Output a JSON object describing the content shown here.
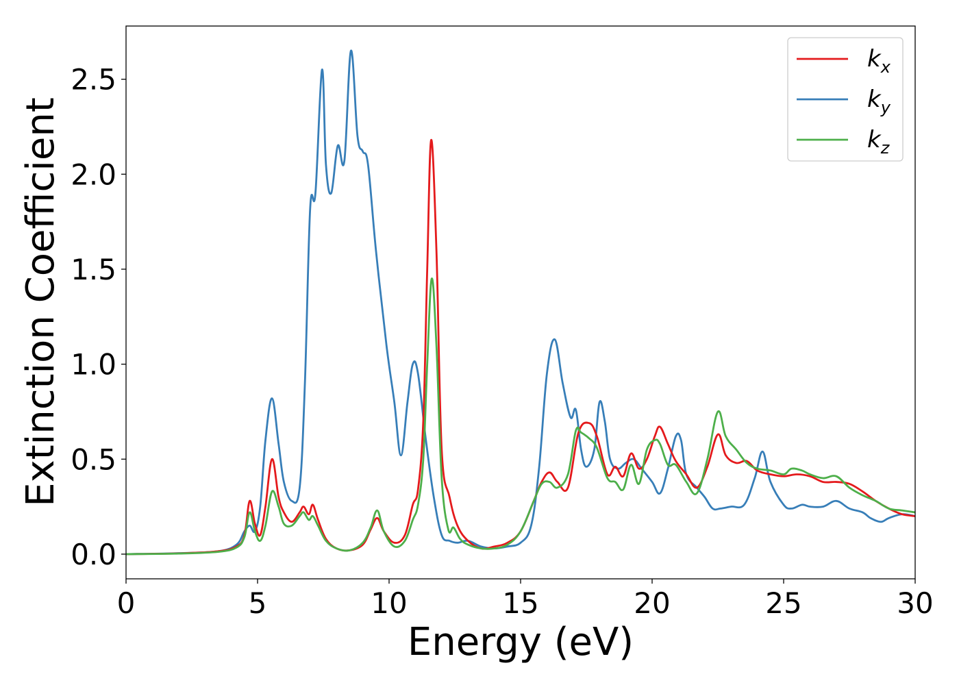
{
  "chart_data": {
    "type": "line",
    "title": "",
    "xlabel": "Energy (eV)",
    "ylabel": "Extinction Coefficient",
    "xlim": [
      0,
      30
    ],
    "ylim": [
      -0.13,
      2.78
    ],
    "xticks": [
      0,
      5,
      10,
      15,
      20,
      25,
      30
    ],
    "xtick_labels": [
      "0",
      "5",
      "10",
      "15",
      "20",
      "25",
      "30"
    ],
    "yticks": [
      0.0,
      0.5,
      1.0,
      1.5,
      2.0,
      2.5
    ],
    "ytick_labels": [
      "0.0",
      "0.5",
      "1.0",
      "1.5",
      "2.0",
      "2.5"
    ],
    "grid": false,
    "legend_position": "top-right",
    "series": [
      {
        "name": "k_x",
        "label_main": "k",
        "label_sub": "x",
        "color": "#e41a1c",
        "x": [
          0,
          2,
          3.5,
          4.2,
          4.5,
          4.7,
          4.9,
          5.1,
          5.3,
          5.55,
          5.8,
          6.0,
          6.3,
          6.6,
          6.75,
          6.95,
          7.1,
          7.3,
          7.6,
          8.0,
          8.5,
          9.0,
          9.3,
          9.55,
          9.8,
          10.2,
          10.6,
          10.9,
          11.1,
          11.3,
          11.45,
          11.6,
          11.8,
          12.0,
          12.3,
          12.6,
          13.0,
          13.5,
          14.0,
          14.5,
          15.0,
          15.5,
          15.8,
          16.1,
          16.4,
          16.8,
          17.2,
          17.6,
          17.9,
          18.3,
          18.6,
          18.9,
          19.2,
          19.5,
          19.8,
          20.1,
          20.3,
          20.6,
          20.9,
          21.3,
          21.7,
          22.1,
          22.5,
          22.8,
          23.2,
          23.6,
          24.0,
          24.5,
          25.0,
          25.5,
          26.0,
          26.5,
          27.0,
          27.5,
          28.0,
          28.5,
          29.0,
          29.5,
          30.0
        ],
        "values": [
          0.0,
          0.004,
          0.015,
          0.04,
          0.1,
          0.28,
          0.16,
          0.1,
          0.25,
          0.5,
          0.3,
          0.22,
          0.17,
          0.22,
          0.25,
          0.21,
          0.26,
          0.18,
          0.08,
          0.03,
          0.02,
          0.05,
          0.13,
          0.19,
          0.12,
          0.06,
          0.1,
          0.26,
          0.34,
          0.7,
          1.5,
          2.18,
          1.6,
          0.55,
          0.3,
          0.15,
          0.07,
          0.03,
          0.04,
          0.06,
          0.12,
          0.28,
          0.38,
          0.43,
          0.38,
          0.35,
          0.64,
          0.69,
          0.62,
          0.42,
          0.46,
          0.41,
          0.53,
          0.45,
          0.5,
          0.62,
          0.67,
          0.58,
          0.49,
          0.42,
          0.35,
          0.46,
          0.63,
          0.52,
          0.48,
          0.49,
          0.44,
          0.42,
          0.41,
          0.42,
          0.41,
          0.38,
          0.38,
          0.37,
          0.33,
          0.28,
          0.24,
          0.21,
          0.2
        ]
      },
      {
        "name": "k_y",
        "label_main": "k",
        "label_sub": "y",
        "color": "#377eb8",
        "x": [
          0,
          2,
          3.5,
          4.2,
          4.5,
          4.7,
          4.9,
          5.1,
          5.3,
          5.55,
          5.8,
          6.0,
          6.3,
          6.6,
          6.8,
          7.0,
          7.2,
          7.45,
          7.6,
          7.8,
          8.05,
          8.3,
          8.55,
          8.8,
          9.0,
          9.2,
          9.5,
          9.9,
          10.2,
          10.45,
          10.7,
          10.9,
          11.1,
          11.4,
          11.7,
          12.0,
          12.3,
          12.6,
          13.0,
          13.5,
          14.0,
          14.5,
          15.0,
          15.4,
          15.7,
          16.0,
          16.3,
          16.6,
          16.9,
          17.1,
          17.3,
          17.5,
          17.8,
          18.0,
          18.2,
          18.4,
          18.7,
          19.0,
          19.3,
          19.6,
          20.0,
          20.3,
          20.6,
          20.9,
          21.1,
          21.3,
          21.7,
          22.0,
          22.3,
          22.6,
          23.0,
          23.5,
          23.9,
          24.2,
          24.5,
          25.0,
          25.3,
          25.7,
          26.0,
          26.5,
          27.0,
          27.5,
          28.0,
          28.3,
          28.7,
          29.0,
          29.5,
          30.0
        ],
        "values": [
          0.0,
          0.005,
          0.015,
          0.05,
          0.12,
          0.15,
          0.12,
          0.25,
          0.6,
          0.82,
          0.58,
          0.38,
          0.28,
          0.35,
          0.9,
          1.82,
          1.9,
          2.55,
          2.05,
          1.9,
          2.15,
          2.07,
          2.65,
          2.2,
          2.12,
          2.05,
          1.6,
          1.1,
          0.8,
          0.52,
          0.8,
          1.0,
          0.95,
          0.6,
          0.3,
          0.1,
          0.07,
          0.06,
          0.07,
          0.04,
          0.03,
          0.04,
          0.06,
          0.15,
          0.45,
          0.95,
          1.13,
          0.9,
          0.72,
          0.76,
          0.55,
          0.46,
          0.55,
          0.8,
          0.7,
          0.5,
          0.45,
          0.48,
          0.5,
          0.45,
          0.38,
          0.32,
          0.45,
          0.62,
          0.6,
          0.42,
          0.35,
          0.3,
          0.24,
          0.24,
          0.25,
          0.26,
          0.4,
          0.54,
          0.38,
          0.26,
          0.24,
          0.26,
          0.25,
          0.25,
          0.28,
          0.24,
          0.22,
          0.19,
          0.17,
          0.19,
          0.21,
          0.2
        ]
      },
      {
        "name": "k_z",
        "label_main": "k",
        "label_sub": "z",
        "color": "#4daf4a",
        "x": [
          0,
          2,
          3.5,
          4.2,
          4.5,
          4.7,
          4.9,
          5.1,
          5.3,
          5.55,
          5.8,
          6.0,
          6.3,
          6.6,
          6.75,
          6.95,
          7.1,
          7.3,
          7.6,
          8.0,
          8.5,
          9.0,
          9.3,
          9.55,
          9.8,
          10.2,
          10.6,
          10.9,
          11.1,
          11.3,
          11.45,
          11.62,
          11.8,
          12.0,
          12.25,
          12.45,
          12.7,
          13.0,
          13.5,
          14.0,
          14.5,
          15.0,
          15.5,
          15.8,
          16.1,
          16.4,
          16.8,
          17.1,
          17.3,
          17.6,
          17.9,
          18.3,
          18.6,
          18.9,
          19.2,
          19.5,
          19.8,
          20.1,
          20.3,
          20.6,
          20.9,
          21.3,
          21.7,
          22.1,
          22.5,
          22.8,
          23.2,
          23.6,
          24.0,
          24.5,
          25.0,
          25.3,
          25.7,
          26.0,
          26.5,
          27.0,
          27.5,
          28.0,
          28.5,
          29.0,
          29.5,
          30.0
        ],
        "values": [
          0.0,
          0.003,
          0.012,
          0.035,
          0.09,
          0.22,
          0.12,
          0.07,
          0.15,
          0.33,
          0.25,
          0.16,
          0.15,
          0.2,
          0.22,
          0.18,
          0.2,
          0.15,
          0.07,
          0.03,
          0.02,
          0.06,
          0.14,
          0.23,
          0.12,
          0.04,
          0.07,
          0.18,
          0.26,
          0.5,
          1.0,
          1.45,
          1.1,
          0.4,
          0.13,
          0.14,
          0.08,
          0.05,
          0.03,
          0.03,
          0.05,
          0.12,
          0.28,
          0.37,
          0.38,
          0.35,
          0.42,
          0.65,
          0.64,
          0.61,
          0.56,
          0.4,
          0.38,
          0.34,
          0.47,
          0.37,
          0.55,
          0.6,
          0.58,
          0.47,
          0.47,
          0.38,
          0.32,
          0.5,
          0.75,
          0.62,
          0.55,
          0.48,
          0.45,
          0.44,
          0.42,
          0.45,
          0.44,
          0.42,
          0.4,
          0.41,
          0.35,
          0.31,
          0.28,
          0.24,
          0.23,
          0.22
        ]
      }
    ]
  }
}
